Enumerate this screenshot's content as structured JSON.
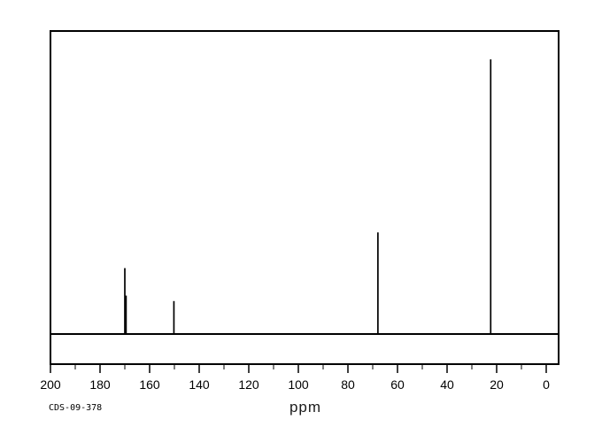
{
  "page": {
    "background_color": "#ffffff",
    "foreground_color": "#000000"
  },
  "chart_data": {
    "type": "line",
    "subtype": "13C NMR stick spectrum",
    "title": "",
    "xlabel": "ppm",
    "ylabel": "",
    "annotation": "CDS-09-378",
    "line_color": "#000000",
    "background_color": "#ffffff",
    "x_axis": {
      "min": 0,
      "max": 200,
      "reversed": true,
      "major_tick_step": 20,
      "minor_tick_step": 10,
      "tick_labels": [
        "200",
        "180",
        "160",
        "140",
        "120",
        "100",
        "80",
        "60",
        "40",
        "20",
        "0"
      ]
    },
    "y_axis": {
      "visible": false,
      "scale": "relative intensity, tallest peak = 1.0"
    },
    "peaks": [
      {
        "ppm": 170.0,
        "rel_intensity": 0.24
      },
      {
        "ppm": 169.5,
        "rel_intensity": 0.14
      },
      {
        "ppm": 150.2,
        "rel_intensity": 0.12
      },
      {
        "ppm": 67.9,
        "rel_intensity": 0.37
      },
      {
        "ppm": 22.4,
        "rel_intensity": 1.0
      }
    ]
  }
}
